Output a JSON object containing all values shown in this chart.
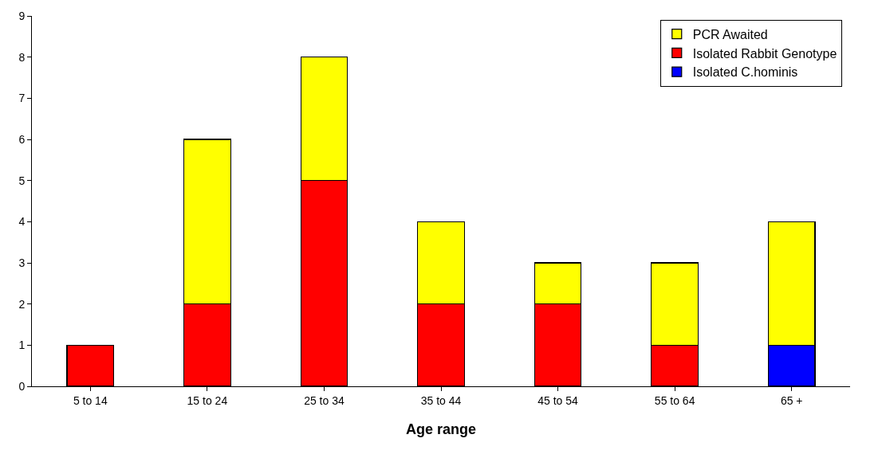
{
  "chart_data": {
    "type": "bar",
    "stacked": true,
    "xlabel": "Age range",
    "categories": [
      "5 to 14",
      "15 to 24",
      "25 to 34",
      "35 to 44",
      "45 to 54",
      "55 to 64",
      "65 +"
    ],
    "series": [
      {
        "name": "Isolated C.hominis",
        "color": "#0000ff",
        "values": [
          null,
          null,
          null,
          null,
          null,
          null,
          1
        ]
      },
      {
        "name": "Isolated Rabbit Genotype",
        "color": "#ff0000",
        "values": [
          1,
          2,
          5,
          2,
          2,
          1,
          null
        ]
      },
      {
        "name": "PCR Awaited",
        "color": "#ffff00",
        "values": [
          null,
          4,
          3,
          2,
          1,
          2,
          3
        ]
      }
    ],
    "ylim": [
      0,
      9
    ],
    "yticks": [
      0,
      1,
      2,
      3,
      4,
      5,
      6,
      7,
      8,
      9
    ],
    "grid": false,
    "legend": "top right"
  }
}
